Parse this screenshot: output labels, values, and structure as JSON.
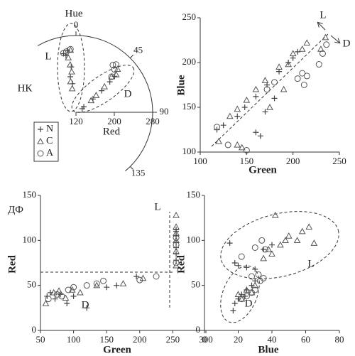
{
  "chart_data": [
    {
      "type": "polar_scatter",
      "title": "Hue",
      "ylabel": "Red",
      "xlim": [
        -30,
        140
      ],
      "xticks": [
        0,
        45,
        90,
        135
      ],
      "ylim": [
        120,
        280
      ],
      "yticks": [
        120,
        200,
        280
      ],
      "legend": "lower-left",
      "annotations": [
        "L",
        "D",
        "НК"
      ],
      "series": [
        {
          "name": "N",
          "marker": "plus",
          "color": "#444",
          "x": [
            -8,
            -10,
            -6,
            -9,
            -7,
            -12,
            55,
            52,
            50,
            48,
            47,
            60
          ],
          "values": [
            250,
            240,
            215,
            195,
            180,
            245,
            140,
            165,
            190,
            215,
            230,
            135
          ]
        },
        {
          "name": "C",
          "marker": "triangle",
          "color": "#555",
          "x": [
            -5,
            -8,
            -7,
            -6,
            -10,
            -9,
            50,
            48,
            45,
            47,
            44,
            52
          ],
          "values": [
            250,
            235,
            220,
            205,
            185,
            170,
            175,
            200,
            225,
            235,
            245,
            160
          ]
        },
        {
          "name": "A",
          "marker": "circle",
          "color": "#555",
          "x": [
            -5,
            -9,
            -12,
            45,
            42,
            40,
            38
          ],
          "values": [
            252,
            248,
            246,
            225,
            240,
            250,
            245
          ]
        }
      ]
    },
    {
      "type": "scatter",
      "xlabel": "Green",
      "ylabel": "Blue",
      "xlim": [
        100,
        250
      ],
      "xticks": [
        100,
        150,
        200,
        250
      ],
      "ylim": [
        100,
        250
      ],
      "yticks": [
        100,
        150,
        200,
        250
      ],
      "annotations": [
        "L",
        "D"
      ],
      "series": [
        {
          "name": "N",
          "marker": "plus",
          "color": "#444",
          "x": [
            118,
            125,
            140,
            148,
            160,
            172,
            185,
            195,
            200,
            205,
            165,
            160,
            170,
            180
          ],
          "values": [
            125,
            130,
            140,
            150,
            162,
            175,
            190,
            200,
            205,
            212,
            118,
            122,
            145,
            160
          ]
        },
        {
          "name": "C",
          "marker": "triangle",
          "color": "#555",
          "x": [
            132,
            140,
            150,
            160,
            170,
            185,
            195,
            200,
            210,
            215,
            120,
            140,
            145,
            175,
            190,
            230,
            235
          ],
          "values": [
            140,
            148,
            158,
            170,
            180,
            195,
            198,
            210,
            215,
            222,
            112,
            108,
            105,
            150,
            170,
            215,
            228
          ]
        },
        {
          "name": "A",
          "marker": "circle",
          "color": "#555",
          "x": [
            118,
            130,
            150,
            172,
            180,
            205,
            210,
            212,
            215,
            228,
            232,
            236
          ],
          "values": [
            128,
            108,
            102,
            170,
            178,
            182,
            188,
            175,
            185,
            198,
            210,
            220
          ]
        }
      ]
    },
    {
      "type": "scatter",
      "xlabel": "Green",
      "ylabel": "Red",
      "xlim": [
        50,
        300
      ],
      "xticks": [
        50,
        100,
        150,
        200,
        250,
        300
      ],
      "ylim": [
        0,
        150
      ],
      "yticks": [
        0,
        50,
        100,
        150
      ],
      "annotations": [
        "L",
        "D",
        "ДФ"
      ],
      "series": [
        {
          "name": "N",
          "marker": "plus",
          "color": "#444",
          "x": [
            60,
            65,
            72,
            80,
            90,
            100,
            120,
            150,
            165,
            195,
            255,
            255,
            255,
            255,
            255,
            255,
            255
          ],
          "values": [
            38,
            42,
            35,
            40,
            30,
            38,
            25,
            48,
            50,
            60,
            78,
            85,
            92,
            98,
            105,
            110,
            112
          ]
        },
        {
          "name": "C",
          "marker": "triangle",
          "color": "#555",
          "x": [
            58,
            70,
            78,
            88,
            98,
            110,
            135,
            175,
            205,
            255,
            255,
            255,
            255,
            255,
            255
          ],
          "values": [
            30,
            42,
            44,
            36,
            45,
            42,
            50,
            52,
            58,
            72,
            88,
            100,
            108,
            115,
            128
          ]
        },
        {
          "name": "A",
          "marker": "circle",
          "color": "#555",
          "x": [
            62,
            75,
            82,
            92,
            100,
            120,
            135,
            145,
            200,
            225,
            255,
            255,
            255
          ],
          "values": [
            35,
            40,
            38,
            45,
            48,
            50,
            52,
            55,
            56,
            60,
            75,
            95,
            103
          ]
        }
      ]
    },
    {
      "type": "scatter",
      "xlabel": "Blue",
      "ylabel": "Red",
      "xlim": [
        0,
        80
      ],
      "xticks": [
        0,
        20,
        40,
        60,
        80
      ],
      "ylim": [
        0,
        150
      ],
      "yticks": [
        0,
        50,
        100,
        150
      ],
      "annotations": [
        "L",
        "D"
      ],
      "series": [
        {
          "name": "N",
          "marker": "plus",
          "color": "#444",
          "x": [
            17,
            18,
            20,
            22,
            24,
            25,
            28,
            30,
            15,
            18,
            20,
            25,
            30,
            35,
            40
          ],
          "values": [
            22,
            30,
            35,
            40,
            38,
            45,
            50,
            55,
            97,
            75,
            72,
            70,
            68,
            90,
            95
          ]
        },
        {
          "name": "C",
          "marker": "triangle",
          "color": "#555",
          "x": [
            20,
            22,
            25,
            28,
            30,
            35,
            40,
            45,
            50,
            55,
            58,
            62,
            65,
            42,
            38,
            48
          ],
          "values": [
            40,
            35,
            45,
            42,
            50,
            80,
            85,
            95,
            105,
            100,
            110,
            115,
            97,
            128,
            90,
            100
          ]
        },
        {
          "name": "A",
          "marker": "circle",
          "color": "#555",
          "x": [
            22,
            25,
            28,
            30,
            33,
            35,
            32,
            28,
            36,
            34,
            22,
            30
          ],
          "values": [
            35,
            38,
            42,
            45,
            55,
            58,
            62,
            60,
            90,
            100,
            82,
            92
          ]
        }
      ]
    }
  ]
}
